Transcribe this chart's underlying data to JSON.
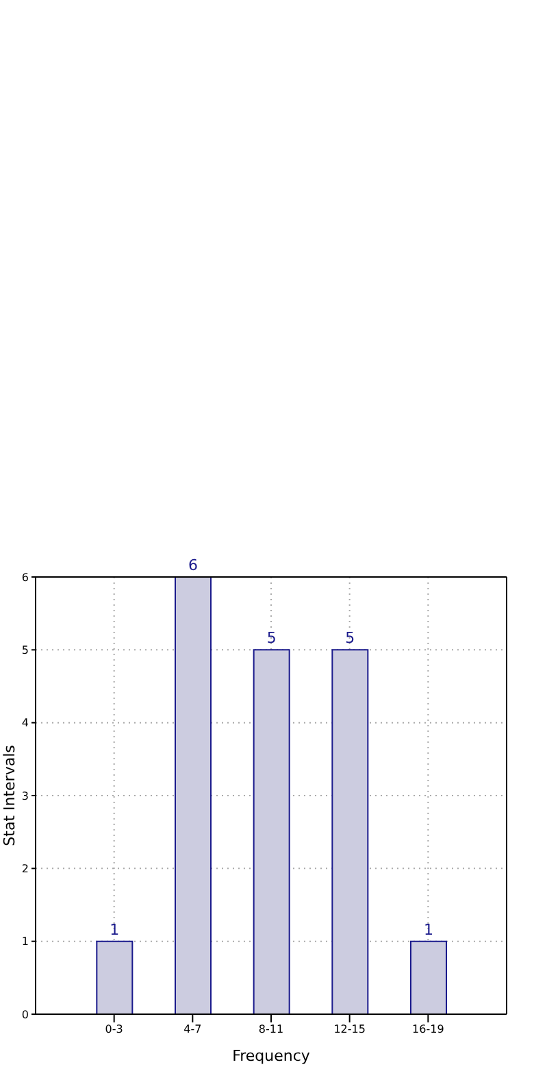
{
  "chart_data": {
    "type": "bar",
    "xlabel": "Frequency",
    "ylabel": "Stat Intervals",
    "categories": [
      "0-3",
      "4-7",
      "8-11",
      "12-15",
      "16-19"
    ],
    "values": [
      1,
      6,
      5,
      5,
      1
    ],
    "color": "#cccce0",
    "ylim": [
      0,
      6
    ],
    "yticks": [
      0,
      1,
      2,
      3,
      4,
      5,
      6
    ],
    "grid": true,
    "data_labels": true
  }
}
